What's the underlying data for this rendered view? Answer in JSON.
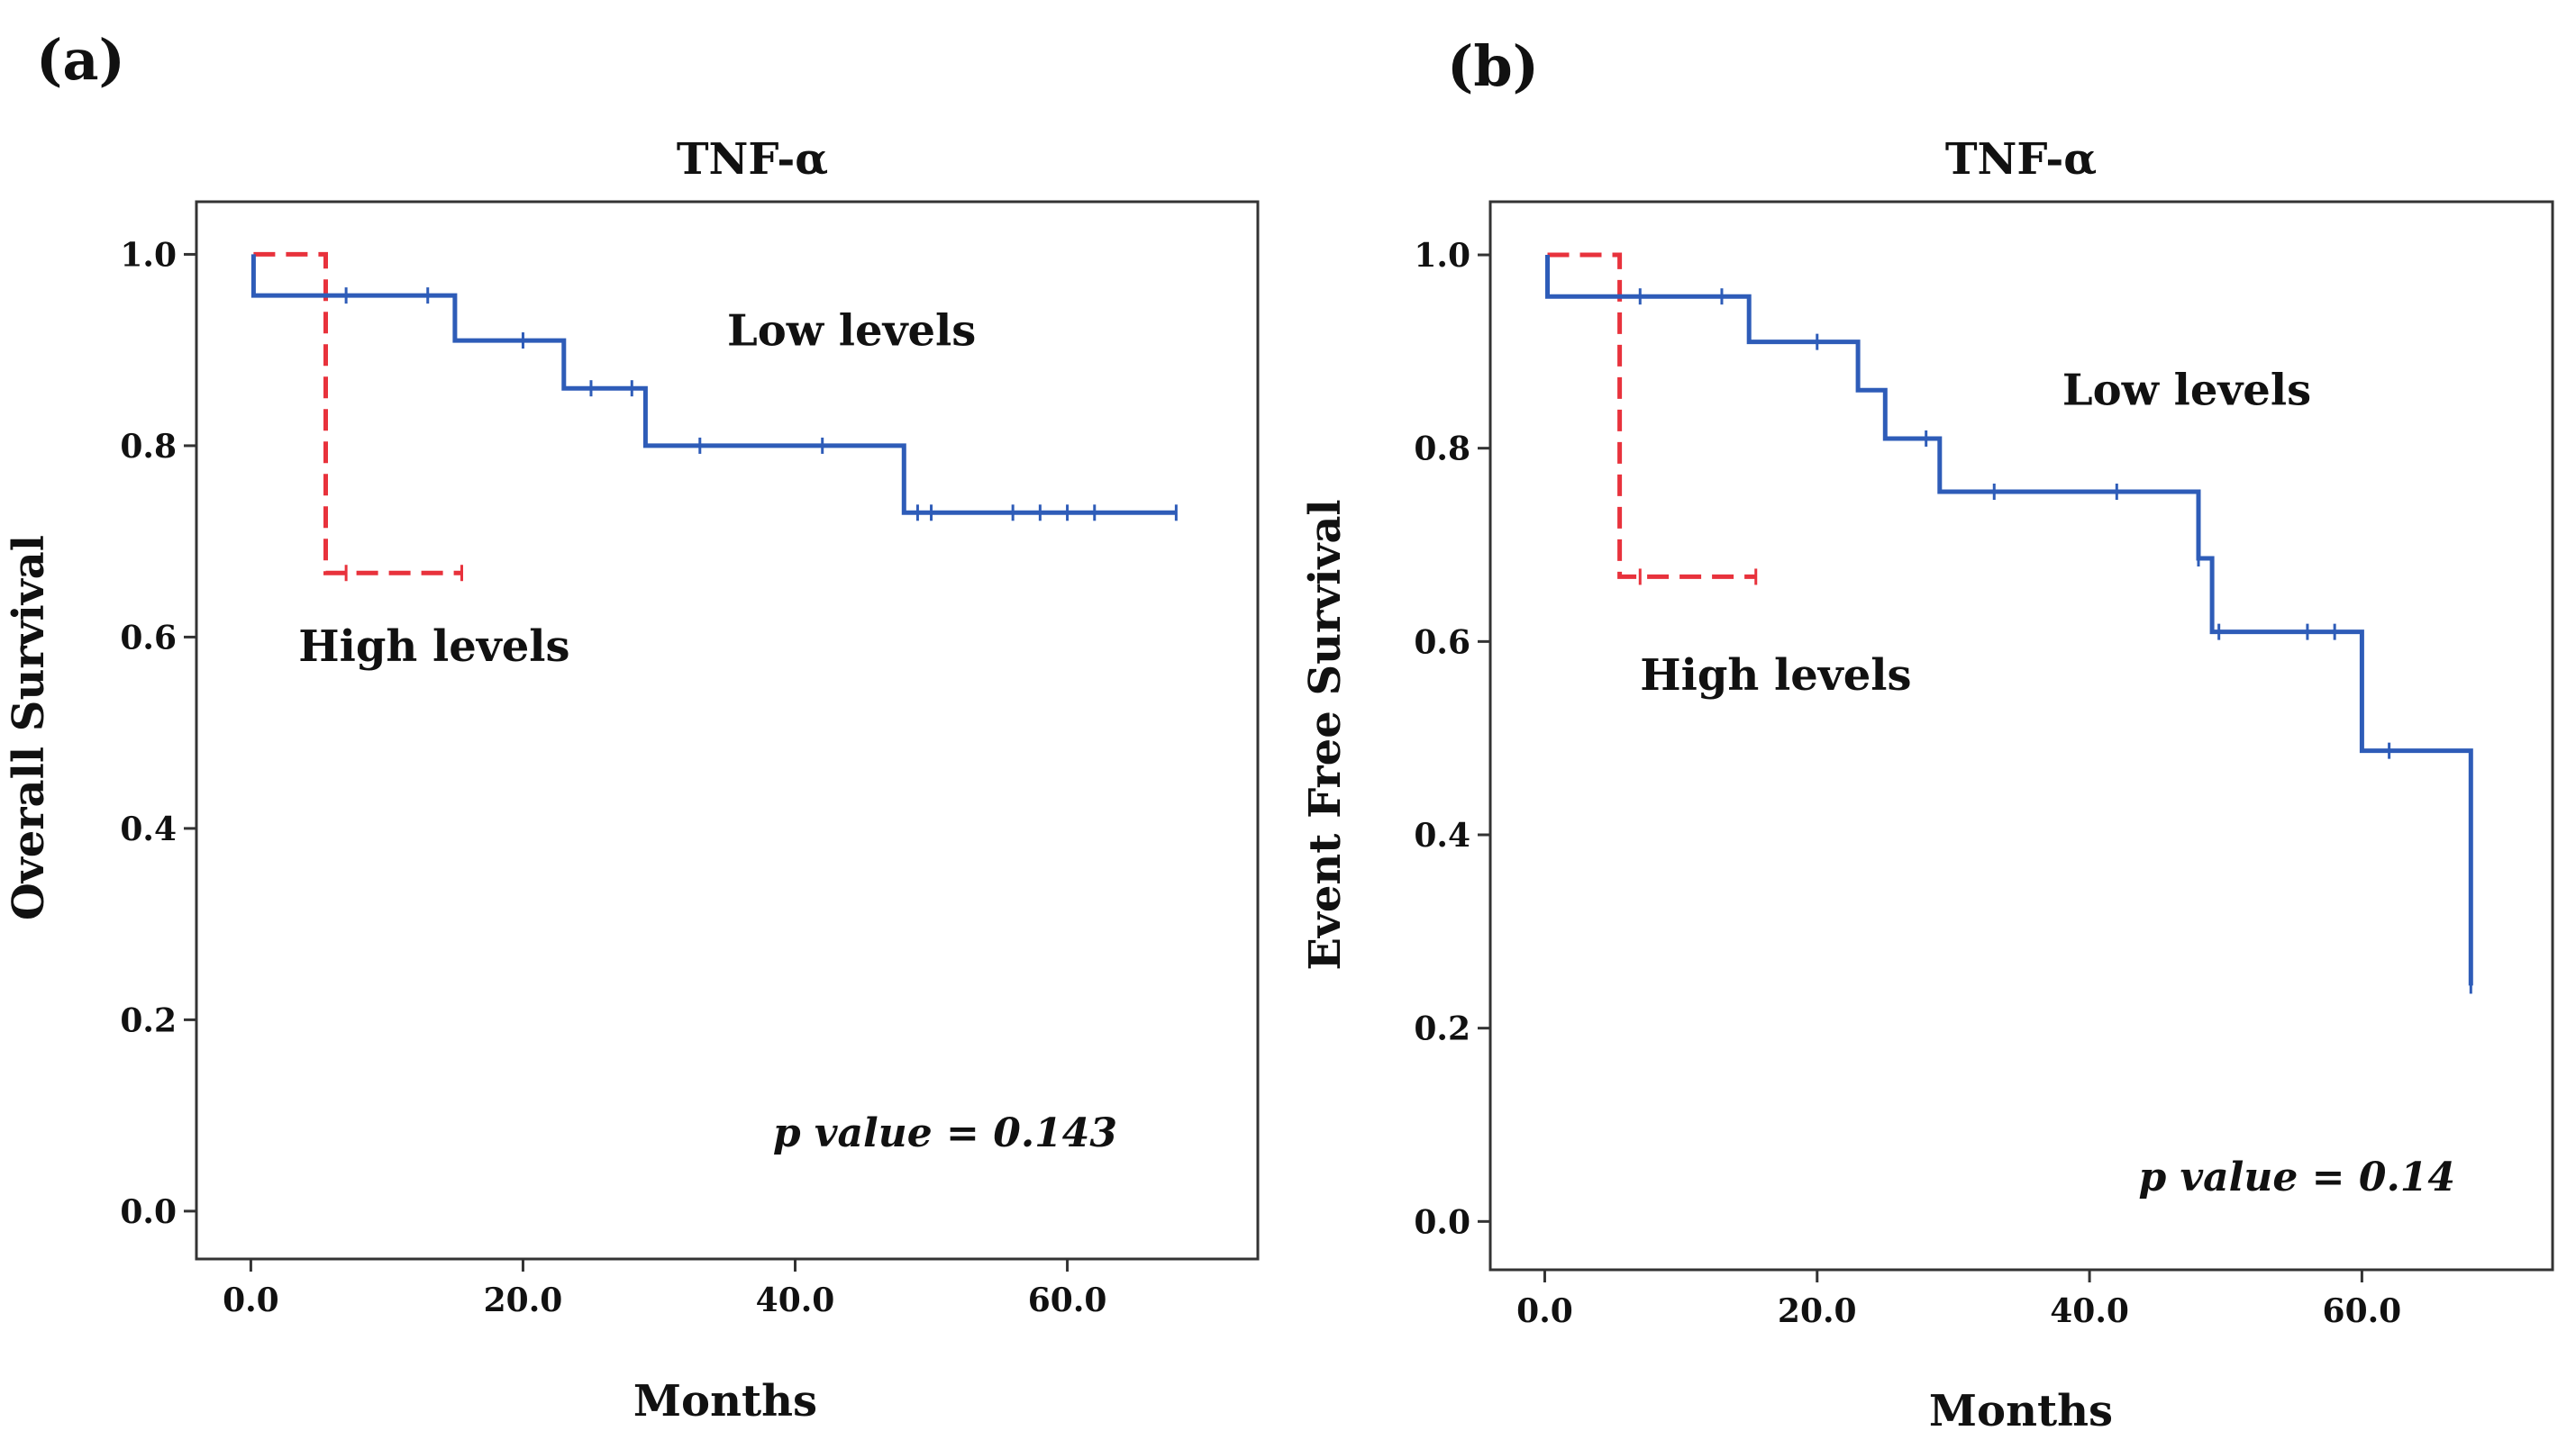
{
  "colors": {
    "low": "#2e5cb8",
    "high": "#e8323c",
    "frame": "#333333"
  },
  "chart_data": [
    {
      "type": "line",
      "panel_label": "(a)",
      "title": "TNF-α",
      "xlabel": "Months",
      "ylabel": "Overall Survival",
      "xlim": [
        -4,
        74
      ],
      "ylim": [
        -0.05,
        1.055
      ],
      "xticks": [
        0,
        20,
        40,
        60
      ],
      "xtick_labels": [
        "0.0",
        "20.0",
        "40.0",
        "60.0"
      ],
      "yticks": [
        0,
        0.2,
        0.4,
        0.6,
        0.8,
        1.0
      ],
      "ytick_labels": [
        "0.0",
        "0.2",
        "0.4",
        "0.6",
        "0.8",
        "1.0"
      ],
      "p_value": "p value = 0.143",
      "series": [
        {
          "name": "Low levels",
          "label": "Low levels",
          "style": "solid",
          "label_anchor": [
            35,
            0.905
          ],
          "x": [
            0.2,
            0.2,
            15,
            15,
            23,
            23,
            29,
            29,
            48,
            48,
            68
          ],
          "y": [
            1.0,
            0.957,
            0.957,
            0.91,
            0.91,
            0.86,
            0.86,
            0.8,
            0.8,
            0.73,
            0.73
          ],
          "censored": [
            [
              7,
              0.957
            ],
            [
              13,
              0.957
            ],
            [
              20,
              0.91
            ],
            [
              25,
              0.86
            ],
            [
              28,
              0.86
            ],
            [
              33,
              0.8
            ],
            [
              42,
              0.8
            ],
            [
              49,
              0.73
            ],
            [
              50,
              0.73
            ],
            [
              56,
              0.73
            ],
            [
              58,
              0.73
            ],
            [
              60,
              0.73
            ],
            [
              62,
              0.73
            ],
            [
              68,
              0.73
            ]
          ]
        },
        {
          "name": "High levels",
          "label": "High levels",
          "style": "dashed",
          "label_anchor": [
            3.5,
            0.575
          ],
          "x": [
            0.2,
            5.5,
            5.5,
            15.5
          ],
          "y": [
            1.0,
            1.0,
            0.667,
            0.667
          ],
          "censored": [
            [
              7,
              0.667
            ],
            [
              15.5,
              0.667
            ]
          ]
        }
      ]
    },
    {
      "type": "line",
      "panel_label": "(b)",
      "title": "TNF-α",
      "xlabel": "Months",
      "ylabel": "Event Free Survival",
      "xlim": [
        -4,
        74
      ],
      "ylim": [
        -0.05,
        1.055
      ],
      "xticks": [
        0,
        20,
        40,
        60
      ],
      "xtick_labels": [
        "0.0",
        "20.0",
        "40.0",
        "60.0"
      ],
      "yticks": [
        0,
        0.2,
        0.4,
        0.6,
        0.8,
        1.0
      ],
      "ytick_labels": [
        "0.0",
        "0.2",
        "0.4",
        "0.6",
        "0.8",
        "1.0"
      ],
      "p_value": "p value = 0.14",
      "series": [
        {
          "name": "Low levels",
          "label": "Low levels",
          "style": "solid",
          "label_anchor": [
            38,
            0.845
          ],
          "x": [
            0.2,
            0.2,
            15,
            15,
            23,
            23,
            25,
            25,
            29,
            29,
            48,
            48,
            49,
            49,
            60,
            60,
            68,
            68
          ],
          "y": [
            1.0,
            0.957,
            0.957,
            0.91,
            0.91,
            0.86,
            0.86,
            0.81,
            0.81,
            0.755,
            0.755,
            0.686,
            0.686,
            0.61,
            0.61,
            0.487,
            0.487,
            0.244
          ],
          "censored": [
            [
              7,
              0.957
            ],
            [
              13,
              0.957
            ],
            [
              20,
              0.91
            ],
            [
              28,
              0.81
            ],
            [
              33,
              0.755
            ],
            [
              42,
              0.755
            ],
            [
              48,
              0.686
            ],
            [
              49.5,
              0.61
            ],
            [
              56,
              0.61
            ],
            [
              58,
              0.61
            ],
            [
              62,
              0.487
            ],
            [
              68,
              0.244
            ]
          ]
        },
        {
          "name": "High levels",
          "label": "High levels",
          "style": "dashed",
          "label_anchor": [
            7,
            0.55
          ],
          "x": [
            0.2,
            5.5,
            5.5,
            15.5
          ],
          "y": [
            1.0,
            1.0,
            0.667,
            0.667
          ],
          "censored": [
            [
              7,
              0.667
            ],
            [
              15.5,
              0.667
            ]
          ]
        }
      ]
    }
  ]
}
